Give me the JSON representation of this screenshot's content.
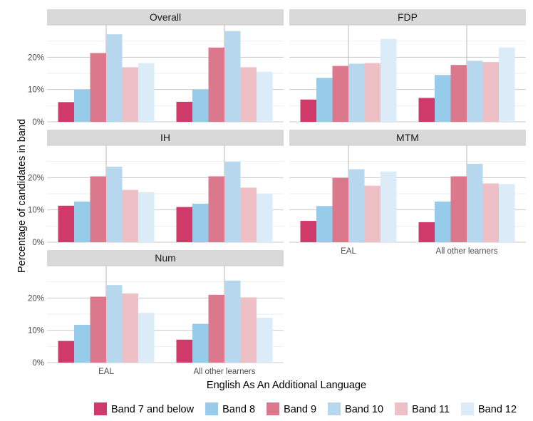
{
  "chart_data": {
    "type": "bar",
    "xlabel": "English As An Additional Language",
    "ylabel": "Percentage of candidates in band",
    "categories": [
      "EAL",
      "All other learners"
    ],
    "ylim": [
      0,
      30
    ],
    "y_ticks": [
      {
        "value": 0,
        "label": "0%"
      },
      {
        "value": 10,
        "label": "10%"
      },
      {
        "value": 20,
        "label": "20%"
      }
    ],
    "grid": true,
    "legend_position": "bottom",
    "series_meta": [
      {
        "name": "Band 7 and below",
        "color": "#cf3a6a"
      },
      {
        "name": "Band 8",
        "color": "#97cbea"
      },
      {
        "name": "Band 9",
        "color": "#db788c"
      },
      {
        "name": "Band 10",
        "color": "#b7d7ef"
      },
      {
        "name": "Band 11",
        "color": "#efbfc6"
      },
      {
        "name": "Band 12",
        "color": "#dcebf8"
      }
    ],
    "facets": [
      {
        "title": "Overall",
        "values": [
          [
            6.1,
            10.0,
            21.3,
            27.1,
            16.9,
            18.2
          ],
          [
            6.2,
            10.0,
            23.0,
            28.1,
            16.9,
            15.5
          ]
        ]
      },
      {
        "title": "FDP",
        "values": [
          [
            6.9,
            13.6,
            17.3,
            18.0,
            18.2,
            25.7
          ],
          [
            7.4,
            14.5,
            17.6,
            18.9,
            18.5,
            23.0
          ]
        ]
      },
      {
        "title": "IH",
        "values": [
          [
            11.3,
            12.6,
            20.4,
            23.4,
            16.2,
            15.5
          ],
          [
            10.9,
            11.9,
            20.4,
            24.9,
            16.9,
            14.9
          ]
        ]
      },
      {
        "title": "MTM",
        "values": [
          [
            6.6,
            11.2,
            19.9,
            22.6,
            17.5,
            21.9
          ],
          [
            6.2,
            12.6,
            20.4,
            24.3,
            18.2,
            18.0
          ]
        ]
      },
      {
        "title": "Num",
        "values": [
          [
            6.7,
            11.7,
            20.4,
            24.0,
            21.4,
            15.4
          ],
          [
            7.1,
            12.0,
            21.0,
            25.4,
            20.2,
            13.9
          ]
        ]
      }
    ]
  }
}
